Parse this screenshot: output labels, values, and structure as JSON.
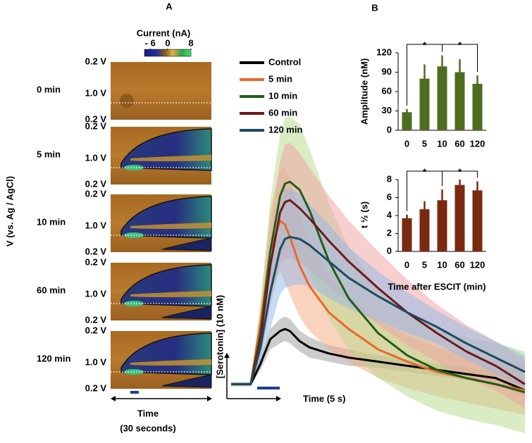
{
  "panel_labels": [
    "A",
    "B"
  ],
  "colorplots": {
    "ylabel": "V (vs. Ag / AgCl)",
    "colorbar": {
      "title": "Current (nA)",
      "lim": [
        -8,
        8
      ],
      "ticks": [
        {
          "value": -6,
          "label": "- 6"
        },
        0,
        8
      ]
    },
    "rows": [
      {
        "label": "0 min",
        "vticks": [
          "0.2 V",
          "1.0 V",
          "0.2 V"
        ]
      },
      {
        "label": "5 min",
        "vticks": [
          "0.2 V",
          "1.0 V",
          "0.2 V"
        ]
      },
      {
        "label": "10 min",
        "vticks": [
          "0.2 V",
          "1.0 V",
          "0.2 V"
        ]
      },
      {
        "label": "60 min",
        "vticks": [
          "0.2 V",
          "1.0 V",
          "0.2 V"
        ]
      },
      {
        "label": "120 min",
        "vticks": [
          "0.2 V",
          "1.0 V",
          "0.2 V"
        ]
      }
    ],
    "xlabel": "Time",
    "xlabel_sub": "(30 seconds)"
  },
  "chart_data": [
    {
      "type": "line",
      "ylabel": "[Serotonin]  (10 nM)",
      "xlabel": "Time (5 s)",
      "xlim": [
        0,
        30
      ],
      "ylim": [
        -5,
        120
      ],
      "x": [
        0,
        2,
        3,
        4,
        5,
        5.5,
        6,
        7,
        8,
        10,
        12,
        15,
        18,
        21,
        24,
        27,
        30
      ],
      "series": [
        {
          "name": "Control",
          "color": "#000000",
          "band_color": "#9a9a9a",
          "values": [
            0,
            0,
            10,
            22,
            26,
            27,
            26,
            21,
            18,
            15,
            13,
            11,
            9,
            7,
            5,
            3,
            -3
          ],
          "errors": [
            1,
            1,
            3,
            5,
            6,
            6,
            6,
            5,
            5,
            4,
            4,
            3,
            3,
            3,
            3,
            3,
            3
          ]
        },
        {
          "name": "5 min",
          "color": "#e8692a",
          "band_color": "#f5a77e",
          "values": [
            0,
            0,
            30,
            65,
            80,
            78,
            72,
            58,
            48,
            35,
            27,
            17,
            11,
            6,
            3,
            0,
            -3
          ],
          "errors": [
            1,
            1,
            10,
            20,
            25,
            28,
            28,
            25,
            22,
            18,
            16,
            14,
            13,
            12,
            12,
            12,
            12
          ]
        },
        {
          "name": "10 min",
          "color": "#1f5e1a",
          "band_color": "#b5d98a",
          "values": [
            0,
            0,
            25,
            65,
            92,
            98,
            99,
            95,
            85,
            60,
            42,
            25,
            14,
            7,
            3,
            0,
            -4
          ],
          "errors": [
            1,
            1,
            12,
            25,
            30,
            32,
            32,
            32,
            30,
            28,
            25,
            22,
            20,
            20,
            20,
            20,
            20
          ]
        },
        {
          "name": "60 min",
          "color": "#6e1a1a",
          "band_color": "#f0a0a0",
          "values": [
            0,
            0,
            22,
            58,
            84,
            89,
            90,
            86,
            81,
            70,
            60,
            47,
            35,
            25,
            16,
            9,
            0
          ],
          "errors": [
            1,
            1,
            10,
            20,
            25,
            28,
            28,
            27,
            25,
            22,
            20,
            18,
            16,
            14,
            13,
            12,
            12
          ]
        },
        {
          "name": "120 min",
          "color": "#1e4a5e",
          "band_color": "#8fb8e8",
          "values": [
            0,
            0,
            18,
            45,
            66,
            71,
            72,
            71,
            68,
            60,
            52,
            43,
            35,
            28,
            20,
            13,
            6
          ],
          "errors": [
            1,
            1,
            8,
            18,
            22,
            24,
            24,
            22,
            20,
            18,
            15,
            12,
            10,
            8,
            8,
            8,
            8
          ]
        }
      ]
    },
    {
      "type": "bar",
      "ylabel": "Amplitude (nM)",
      "categories": [
        "0",
        "5",
        "10",
        "60",
        "120"
      ],
      "values": [
        28,
        80,
        99,
        90,
        72
      ],
      "errors": [
        5,
        22,
        17,
        20,
        13
      ],
      "color": "#4e6e1f",
      "ylim": [
        0,
        120
      ],
      "yticks": [
        0,
        30,
        60,
        90,
        120
      ],
      "annotations": [
        {
          "text": "*",
          "from": "0",
          "to": "10"
        },
        {
          "text": "*",
          "from": "10",
          "to": "120"
        }
      ]
    },
    {
      "type": "bar",
      "ylabel": "t ½ (s)",
      "xlabel": "Time after ESCIT (min)",
      "categories": [
        "0",
        "5",
        "10",
        "60",
        "120"
      ],
      "values": [
        3.7,
        4.7,
        5.7,
        7.4,
        6.8
      ],
      "errors": [
        0.4,
        0.9,
        1.2,
        0.6,
        1.0
      ],
      "color": "#7a2a10",
      "ylim": [
        0,
        8
      ],
      "yticks": [
        0,
        2,
        4,
        6,
        8
      ],
      "annotations": [
        {
          "text": "*",
          "from": "0",
          "to": "10"
        },
        {
          "text": "*",
          "from": "10",
          "to": "120"
        }
      ]
    }
  ]
}
